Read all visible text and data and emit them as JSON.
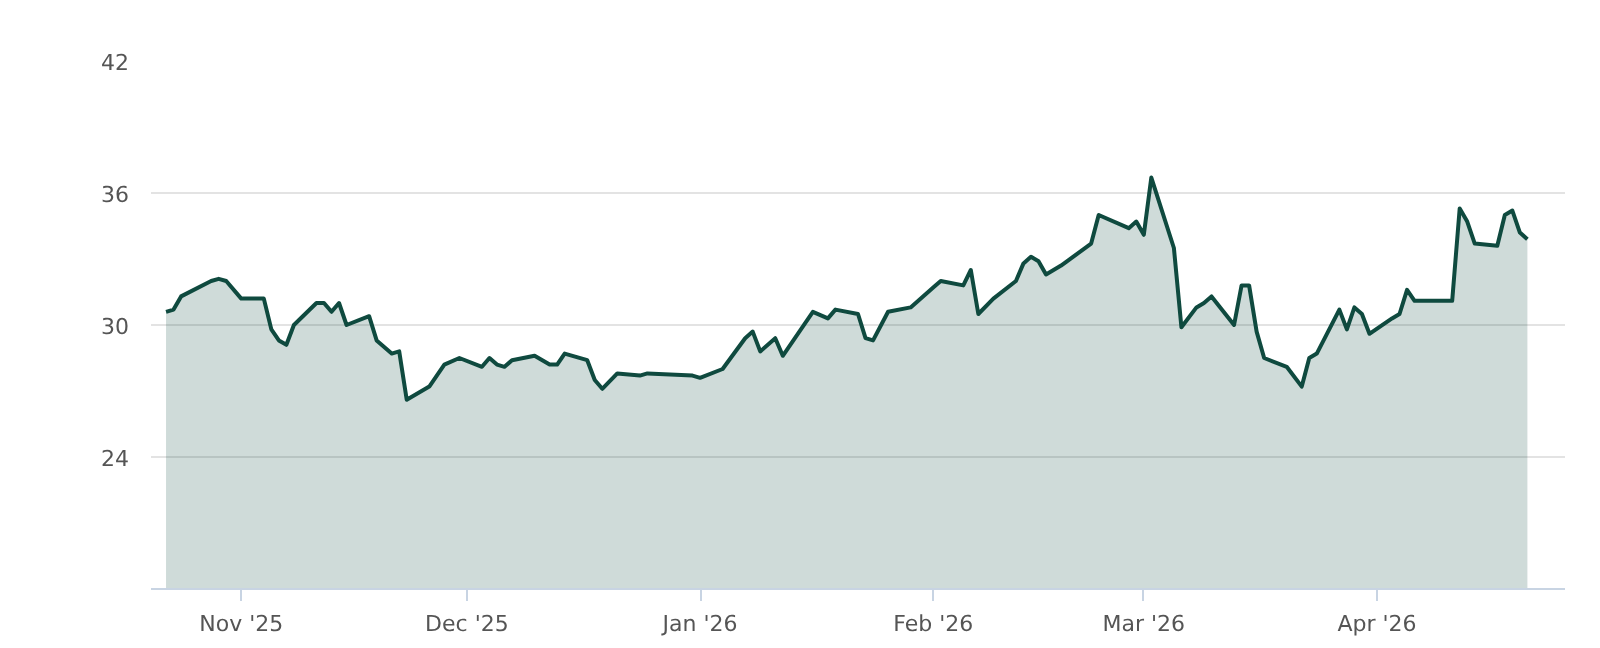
{
  "chart_data": {
    "type": "area",
    "xlim": [
      "2025-10-20",
      "2026-04-26"
    ],
    "ylim": [
      18,
      42
    ],
    "yticks": [
      24,
      30,
      36,
      42
    ],
    "xticks": [
      {
        "value": "2025-11-01",
        "label": "Nov '25"
      },
      {
        "value": "2025-12-01",
        "label": "Dec '25"
      },
      {
        "value": "2026-01-01",
        "label": "Jan '26"
      },
      {
        "value": "2026-02-01",
        "label": "Feb '26"
      },
      {
        "value": "2026-03-01",
        "label": "Mar '26"
      },
      {
        "value": "2026-04-01",
        "label": "Apr '26"
      }
    ],
    "grid": "y",
    "x": [
      "2025-10-22",
      "2025-10-23",
      "2025-10-24",
      "2025-10-28",
      "2025-10-29",
      "2025-10-30",
      "2025-11-01",
      "2025-11-04",
      "2025-11-05",
      "2025-11-06",
      "2025-11-07",
      "2025-11-08",
      "2025-11-11",
      "2025-11-12",
      "2025-11-13",
      "2025-11-14",
      "2025-11-15",
      "2025-11-18",
      "2025-11-19",
      "2025-11-21",
      "2025-11-22",
      "2025-11-23",
      "2025-11-26",
      "2025-11-28",
      "2025-11-30",
      "2025-12-03",
      "2025-12-04",
      "2025-12-05",
      "2025-12-06",
      "2025-12-07",
      "2025-12-10",
      "2025-12-12",
      "2025-12-13",
      "2025-12-14",
      "2025-12-17",
      "2025-12-18",
      "2025-12-19",
      "2025-12-21",
      "2025-12-24",
      "2025-12-25",
      "2025-12-31",
      "2026-01-01",
      "2026-01-04",
      "2026-01-07",
      "2026-01-08",
      "2026-01-09",
      "2026-01-11",
      "2026-01-12",
      "2026-01-14",
      "2026-01-16",
      "2026-01-18",
      "2026-01-19",
      "2026-01-22",
      "2026-01-23",
      "2026-01-24",
      "2026-01-26",
      "2026-01-29",
      "2026-02-01",
      "2026-02-02",
      "2026-02-05",
      "2026-02-06",
      "2026-02-07",
      "2026-02-09",
      "2026-02-12",
      "2026-02-13",
      "2026-02-14",
      "2026-02-15",
      "2026-02-16",
      "2026-02-18",
      "2026-02-20",
      "2026-02-22",
      "2026-02-23",
      "2026-02-27",
      "2026-02-28",
      "2026-03-01",
      "2026-03-02",
      "2026-03-05",
      "2026-03-06",
      "2026-03-08",
      "2026-03-09",
      "2026-03-10",
      "2026-03-13",
      "2026-03-14",
      "2026-03-15",
      "2026-03-16",
      "2026-03-17",
      "2026-03-20",
      "2026-03-22",
      "2026-03-23",
      "2026-03-24",
      "2026-03-27",
      "2026-03-28",
      "2026-03-29",
      "2026-03-30",
      "2026-03-31",
      "2026-04-03",
      "2026-04-04",
      "2026-04-05",
      "2026-04-06",
      "2026-04-11",
      "2026-04-12",
      "2026-04-13",
      "2026-04-14",
      "2026-04-17",
      "2026-04-18",
      "2026-04-19",
      "2026-04-20",
      "2026-04-21"
    ],
    "series": [
      {
        "color": "#0f4a3f",
        "values": [
          30.6,
          30.7,
          31.3,
          32.0,
          32.1,
          32.0,
          31.2,
          31.2,
          29.8,
          29.3,
          29.1,
          30.0,
          31.0,
          31.0,
          30.6,
          31.0,
          30.0,
          30.4,
          29.3,
          28.7,
          28.8,
          26.6,
          27.2,
          28.2,
          28.5,
          28.1,
          28.5,
          28.2,
          28.1,
          28.4,
          28.6,
          28.2,
          28.2,
          28.7,
          28.4,
          27.5,
          27.1,
          27.8,
          27.7,
          27.8,
          27.7,
          27.6,
          28.0,
          29.4,
          29.7,
          28.8,
          29.4,
          28.6,
          29.6,
          30.6,
          30.3,
          30.7,
          30.5,
          29.4,
          29.3,
          30.6,
          30.8,
          31.7,
          32.0,
          31.8,
          32.5,
          30.5,
          31.2,
          32.0,
          32.8,
          33.1,
          32.9,
          32.3,
          32.7,
          33.2,
          33.7,
          35.0,
          34.4,
          34.7,
          34.1,
          36.7,
          33.5,
          29.9,
          30.8,
          31.0,
          31.3,
          30.0,
          31.8,
          31.8,
          29.7,
          28.5,
          28.1,
          27.2,
          28.5,
          28.7,
          30.7,
          29.8,
          30.8,
          30.5,
          29.6,
          30.3,
          30.5,
          31.6,
          31.1,
          31.1,
          35.3,
          34.7,
          33.7,
          33.6,
          35.0,
          35.2,
          34.2,
          33.9
        ]
      }
    ]
  }
}
